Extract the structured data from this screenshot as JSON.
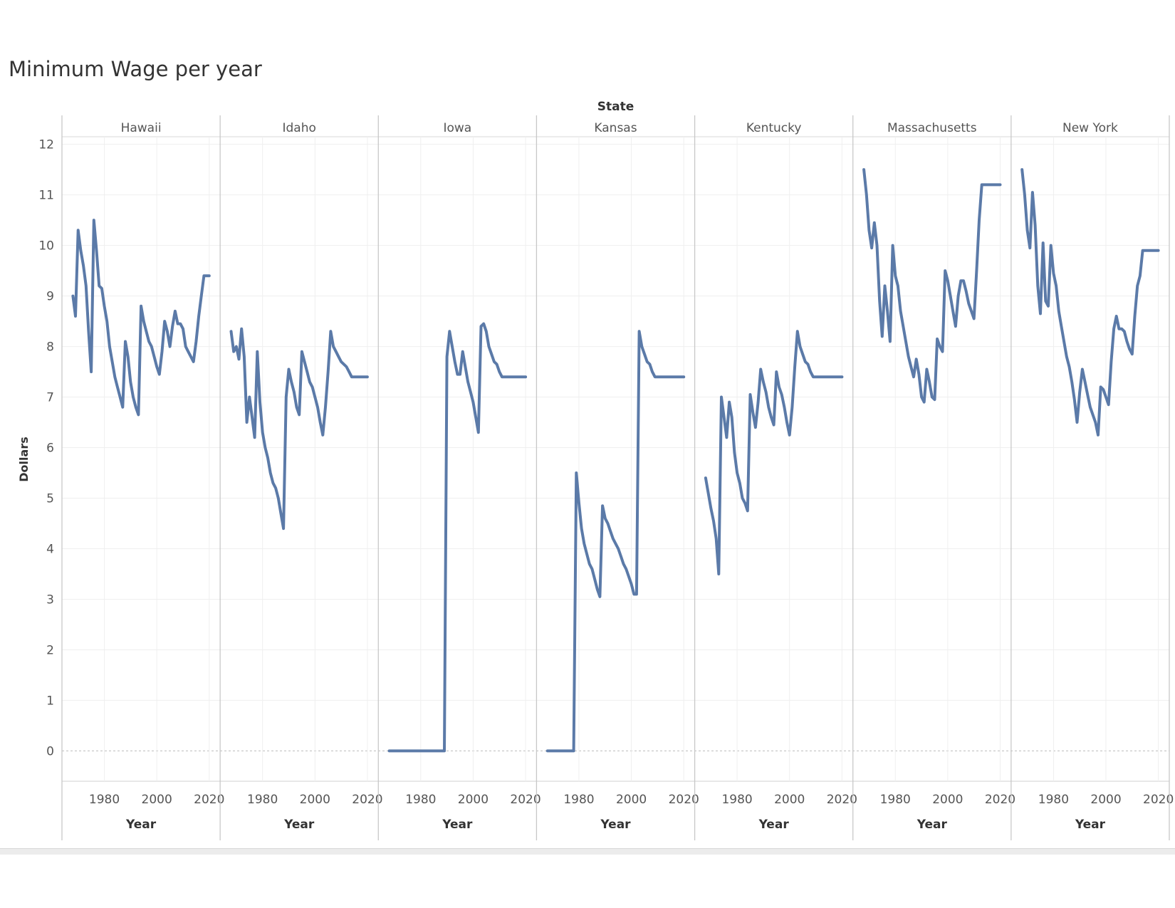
{
  "title": "Minimum Wage per year",
  "colors": {
    "line": "#5b7aa8",
    "grid": "#efefef",
    "divider": "#c8c8c8",
    "text": "#555555"
  },
  "chart_data": {
    "type": "line",
    "facet_label": "State",
    "xlabel": "Year",
    "ylabel": "Dollars",
    "ylim": [
      -0.6,
      12.15
    ],
    "xlim": [
      1966,
      2022
    ],
    "x_ticks": [
      1980,
      2000,
      2020
    ],
    "y_ticks": [
      0,
      1,
      2,
      3,
      4,
      5,
      6,
      7,
      8,
      9,
      10,
      11,
      12
    ],
    "grid": true,
    "panels": [
      {
        "state": "Hawaii",
        "x": [
          1968,
          1969,
          1970,
          1971,
          1972,
          1973,
          1974,
          1975,
          1976,
          1977,
          1978,
          1979,
          1980,
          1981,
          1982,
          1983,
          1984,
          1985,
          1986,
          1987,
          1988,
          1989,
          1990,
          1991,
          1992,
          1993,
          1994,
          1995,
          1996,
          1997,
          1998,
          1999,
          2000,
          2001,
          2002,
          2003,
          2004,
          2005,
          2006,
          2007,
          2008,
          2009,
          2010,
          2011,
          2012,
          2013,
          2014,
          2015,
          2016,
          2017,
          2018,
          2019,
          2020
        ],
        "y": [
          9.0,
          8.6,
          10.3,
          9.9,
          9.6,
          9.2,
          8.3,
          7.5,
          10.5,
          9.9,
          9.2,
          9.15,
          8.8,
          8.5,
          8.0,
          7.7,
          7.4,
          7.2,
          7.0,
          6.8,
          8.1,
          7.8,
          7.3,
          7.0,
          6.8,
          6.65,
          8.8,
          8.5,
          8.3,
          8.1,
          8.0,
          7.8,
          7.6,
          7.45,
          7.9,
          8.5,
          8.3,
          8.0,
          8.4,
          8.7,
          8.45,
          8.45,
          8.35,
          8.0,
          7.9,
          7.8,
          7.7,
          8.1,
          8.6,
          9.0,
          9.4,
          9.4,
          9.4
        ]
      },
      {
        "state": "Idaho",
        "x": [
          1968,
          1969,
          1970,
          1971,
          1972,
          1973,
          1974,
          1975,
          1976,
          1977,
          1978,
          1979,
          1980,
          1981,
          1982,
          1983,
          1984,
          1985,
          1986,
          1987,
          1988,
          1989,
          1990,
          1991,
          1992,
          1993,
          1994,
          1995,
          1996,
          1997,
          1998,
          1999,
          2000,
          2001,
          2002,
          2003,
          2004,
          2005,
          2006,
          2007,
          2008,
          2009,
          2010,
          2011,
          2012,
          2013,
          2014,
          2015,
          2016,
          2017,
          2018,
          2019,
          2020
        ],
        "y": [
          8.3,
          7.9,
          8.0,
          7.75,
          8.35,
          7.8,
          6.5,
          7.0,
          6.6,
          6.2,
          7.9,
          6.9,
          6.3,
          6.0,
          5.8,
          5.5,
          5.3,
          5.2,
          5.0,
          4.7,
          4.4,
          7.0,
          7.55,
          7.3,
          7.1,
          6.8,
          6.65,
          7.9,
          7.7,
          7.5,
          7.3,
          7.2,
          7.0,
          6.8,
          6.5,
          6.25,
          6.8,
          7.5,
          8.3,
          8.0,
          7.9,
          7.8,
          7.7,
          7.65,
          7.6,
          7.5,
          7.4,
          7.4,
          7.4,
          7.4,
          7.4,
          7.4,
          7.4
        ]
      },
      {
        "state": "Iowa",
        "x": [
          1968,
          1978,
          1989,
          1990,
          1991,
          1992,
          1993,
          1994,
          1995,
          1996,
          1997,
          1998,
          1999,
          2000,
          2001,
          2002,
          2003,
          2004,
          2005,
          2006,
          2007,
          2008,
          2009,
          2010,
          2011,
          2012,
          2013,
          2014,
          2015,
          2016,
          2017,
          2018,
          2019,
          2020
        ],
        "y": [
          0,
          0,
          0,
          7.8,
          8.3,
          8.0,
          7.7,
          7.45,
          7.45,
          7.9,
          7.6,
          7.3,
          7.1,
          6.9,
          6.6,
          6.3,
          8.4,
          8.45,
          8.3,
          8.0,
          7.85,
          7.7,
          7.65,
          7.5,
          7.4,
          7.4,
          7.4,
          7.4,
          7.4,
          7.4,
          7.4,
          7.4,
          7.4,
          7.4
        ]
      },
      {
        "state": "Kansas",
        "x": [
          1968,
          1978,
          1979,
          1980,
          1981,
          1982,
          1983,
          1984,
          1985,
          1986,
          1987,
          1988,
          1989,
          1990,
          1991,
          1992,
          1993,
          1994,
          1995,
          1996,
          1997,
          1998,
          1999,
          2000,
          2001,
          2002,
          2003,
          2004,
          2005,
          2006,
          2007,
          2008,
          2009,
          2010,
          2011,
          2012,
          2013,
          2014,
          2015,
          2016,
          2017,
          2018,
          2019,
          2020
        ],
        "y": [
          0,
          0,
          5.5,
          4.9,
          4.4,
          4.1,
          3.9,
          3.7,
          3.6,
          3.4,
          3.2,
          3.05,
          4.85,
          4.6,
          4.5,
          4.35,
          4.2,
          4.1,
          4.0,
          3.85,
          3.7,
          3.6,
          3.45,
          3.3,
          3.1,
          3.1,
          8.3,
          8.0,
          7.85,
          7.7,
          7.65,
          7.5,
          7.4,
          7.4,
          7.4,
          7.4,
          7.4,
          7.4,
          7.4,
          7.4,
          7.4,
          7.4,
          7.4,
          7.4
        ]
      },
      {
        "state": "Kentucky",
        "x": [
          1968,
          1969,
          1970,
          1971,
          1972,
          1973,
          1974,
          1975,
          1976,
          1977,
          1978,
          1979,
          1980,
          1981,
          1982,
          1983,
          1984,
          1985,
          1986,
          1987,
          1988,
          1989,
          1990,
          1991,
          1992,
          1993,
          1994,
          1995,
          1996,
          1997,
          1998,
          1999,
          2000,
          2001,
          2002,
          2003,
          2004,
          2005,
          2006,
          2007,
          2008,
          2009,
          2010,
          2011,
          2012,
          2013,
          2014,
          2015,
          2016,
          2017,
          2018,
          2019,
          2020
        ],
        "y": [
          5.4,
          5.1,
          4.8,
          4.55,
          4.2,
          3.5,
          7.0,
          6.6,
          6.2,
          6.9,
          6.6,
          5.9,
          5.5,
          5.3,
          5.0,
          4.9,
          4.75,
          7.05,
          6.7,
          6.4,
          6.9,
          7.55,
          7.3,
          7.1,
          6.8,
          6.6,
          6.45,
          7.5,
          7.2,
          7.05,
          6.8,
          6.5,
          6.25,
          6.8,
          7.6,
          8.3,
          8.0,
          7.85,
          7.7,
          7.65,
          7.5,
          7.4,
          7.4,
          7.4,
          7.4,
          7.4,
          7.4,
          7.4,
          7.4,
          7.4,
          7.4,
          7.4,
          7.4
        ]
      },
      {
        "state": "Massachusetts",
        "x": [
          1968,
          1969,
          1970,
          1971,
          1972,
          1973,
          1974,
          1975,
          1976,
          1977,
          1978,
          1979,
          1980,
          1981,
          1982,
          1983,
          1984,
          1985,
          1986,
          1987,
          1988,
          1989,
          1990,
          1991,
          1992,
          1993,
          1994,
          1995,
          1996,
          1997,
          1998,
          1999,
          2000,
          2001,
          2002,
          2003,
          2004,
          2005,
          2006,
          2007,
          2008,
          2009,
          2010,
          2011,
          2012,
          2013,
          2014,
          2015,
          2016,
          2017,
          2018,
          2019,
          2020
        ],
        "y": [
          11.5,
          11.0,
          10.3,
          9.95,
          10.45,
          10.0,
          8.9,
          8.2,
          9.2,
          8.7,
          8.1,
          10.0,
          9.4,
          9.2,
          8.7,
          8.4,
          8.1,
          7.8,
          7.6,
          7.4,
          7.75,
          7.45,
          7.0,
          6.9,
          7.55,
          7.3,
          7.0,
          6.95,
          8.15,
          8.0,
          7.9,
          9.5,
          9.3,
          9.0,
          8.7,
          8.4,
          9.0,
          9.3,
          9.3,
          9.1,
          8.85,
          8.7,
          8.55,
          9.5,
          10.5,
          11.2,
          11.2,
          11.2,
          11.2,
          11.2,
          11.2,
          11.2,
          11.2
        ]
      },
      {
        "state": "New York",
        "x": [
          1968,
          1969,
          1970,
          1971,
          1972,
          1973,
          1974,
          1975,
          1976,
          1977,
          1978,
          1979,
          1980,
          1981,
          1982,
          1983,
          1984,
          1985,
          1986,
          1987,
          1988,
          1989,
          1990,
          1991,
          1992,
          1993,
          1994,
          1995,
          1996,
          1997,
          1998,
          1999,
          2000,
          2001,
          2002,
          2003,
          2004,
          2005,
          2006,
          2007,
          2008,
          2009,
          2010,
          2011,
          2012,
          2013,
          2014,
          2015,
          2016,
          2017,
          2018,
          2019,
          2020
        ],
        "y": [
          11.5,
          11.0,
          10.3,
          9.95,
          11.05,
          10.4,
          9.2,
          8.65,
          10.05,
          8.9,
          8.8,
          10.0,
          9.45,
          9.2,
          8.7,
          8.4,
          8.1,
          7.8,
          7.6,
          7.3,
          6.95,
          6.5,
          7.1,
          7.55,
          7.3,
          7.05,
          6.8,
          6.65,
          6.5,
          6.25,
          7.2,
          7.15,
          7.0,
          6.85,
          7.7,
          8.35,
          8.6,
          8.35,
          8.35,
          8.3,
          8.1,
          7.95,
          7.85,
          8.6,
          9.2,
          9.4,
          9.9,
          9.9,
          9.9,
          9.9,
          9.9,
          9.9,
          9.9
        ]
      }
    ]
  }
}
